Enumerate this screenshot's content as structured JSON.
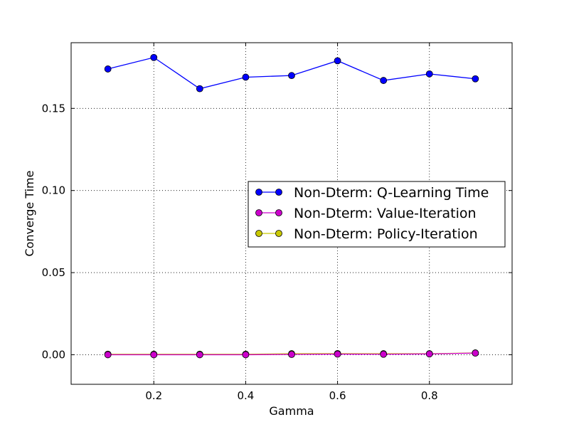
{
  "chart_data": {
    "type": "line",
    "xlabel": "Gamma",
    "ylabel": "Converge Time",
    "xlim": [
      0.02,
      0.98
    ],
    "ylim": [
      -0.018,
      0.19
    ],
    "x_ticks": [
      0.2,
      0.4,
      0.6,
      0.8
    ],
    "x_tick_labels": [
      "0.2",
      "0.4",
      "0.6",
      "0.8"
    ],
    "y_ticks": [
      0.0,
      0.05,
      0.1,
      0.15
    ],
    "y_tick_labels": [
      "0.00",
      "0.05",
      "0.10",
      "0.15"
    ],
    "grid": true,
    "legend_position": "center-right",
    "x": [
      0.1,
      0.2,
      0.3,
      0.4,
      0.5,
      0.6,
      0.7,
      0.8,
      0.9
    ],
    "series": [
      {
        "name": "Non-Dterm: Q-Learning Time",
        "color": "#0000ff",
        "values": [
          0.174,
          0.181,
          0.162,
          0.169,
          0.17,
          0.179,
          0.167,
          0.171,
          0.168
        ]
      },
      {
        "name": "Non-Dterm: Value-Iteration",
        "color": "#cc00cc",
        "values": [
          0.0,
          0.0,
          0.0,
          0.0,
          0.0002,
          0.0004,
          0.0003,
          0.0005,
          0.001
        ]
      },
      {
        "name": "Non-Dterm: Policy-Iteration",
        "color": "#c8c800",
        "values": [
          0.0003,
          0.0003,
          0.0003,
          0.0003,
          0.0006,
          0.0007,
          0.0006,
          0.0006,
          0.0011
        ]
      }
    ]
  }
}
